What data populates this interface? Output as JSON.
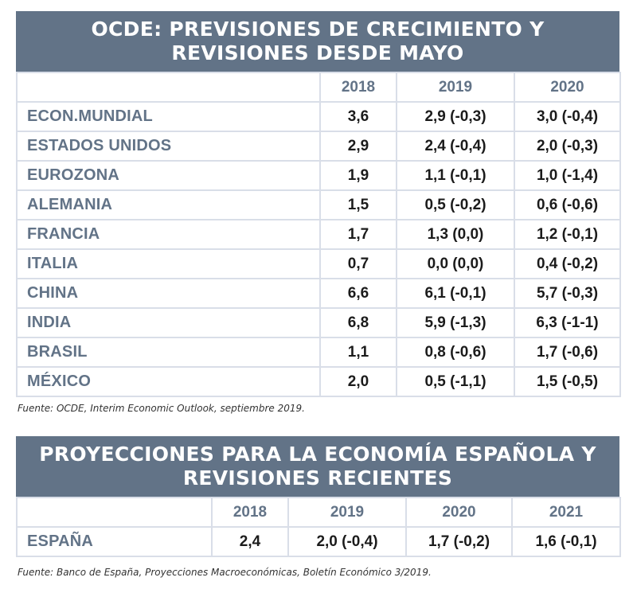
{
  "oecd": {
    "title_line1": "OCDE: PREVISIONES DE CRECIMIENTO Y",
    "title_line2": "REVISIONES DESDE MAYO",
    "columns": [
      "2018",
      "2019",
      "2020"
    ],
    "rows": [
      {
        "country": "ECON.MUNDIAL",
        "v2018": "3,6",
        "v2019": "2,9 (-0,3)",
        "v2020": "3,0 (-0,4)"
      },
      {
        "country": "ESTADOS UNIDOS",
        "v2018": "2,9",
        "v2019": "2,4  (-0,4)",
        "v2020": "2,0 (-0,3)"
      },
      {
        "country": "EUROZONA",
        "v2018": "1,9",
        "v2019": "1,1  (-0,1)",
        "v2020": "1,0 (-1,4)"
      },
      {
        "country": "ALEMANIA",
        "v2018": "1,5",
        "v2019": "0,5 (-0,2)",
        "v2020": "0,6 (-0,6)"
      },
      {
        "country": "FRANCIA",
        "v2018": "1,7",
        "v2019": "1,3 (0,0)",
        "v2020": "1,2 (-0,1)"
      },
      {
        "country": "ITALIA",
        "v2018": "0,7",
        "v2019": "0,0 (0,0)",
        "v2020": "0,4 (-0,2)"
      },
      {
        "country": "CHINA",
        "v2018": "6,6",
        "v2019": "6,1 (-0,1)",
        "v2020": "5,7 (-0,3)"
      },
      {
        "country": "INDIA",
        "v2018": "6,8",
        "v2019": "5,9 (-1,3)",
        "v2020": "6,3 (-1-1)"
      },
      {
        "country": "BRASIL",
        "v2018": "1,1",
        "v2019": "0,8 (-0,6)",
        "v2020": "1,7 (-0,6)"
      },
      {
        "country": "MÉXICO",
        "v2018": "2,0",
        "v2019": "0,5 (-1,1)",
        "v2020": "1,5 (-0,5)"
      }
    ],
    "source": "Fuente: OCDE, Interim Economic Outlook, septiembre 2019."
  },
  "spain": {
    "title_line1": "PROYECCIONES PARA LA ECONOMÍA ESPAÑOLA Y",
    "title_line2": "REVISIONES RECIENTES",
    "columns": [
      "2018",
      "2019",
      "2020",
      "2021"
    ],
    "rows": [
      {
        "country": "ESPAÑA",
        "v2018": "2,4",
        "v2019": "2,0 (-0,4)",
        "v2020": "1,7 (-0,2)",
        "v2021": "1,6 (-0,1)"
      }
    ],
    "source": "Fuente: Banco de España, Proyecciones Macroeconómicas, Boletín Económico 3/2019."
  },
  "colors": {
    "title_bar": "#627387",
    "label_text": "#627387",
    "grid_lines": "#d9dee8",
    "value_text": "#1b1b1b"
  }
}
